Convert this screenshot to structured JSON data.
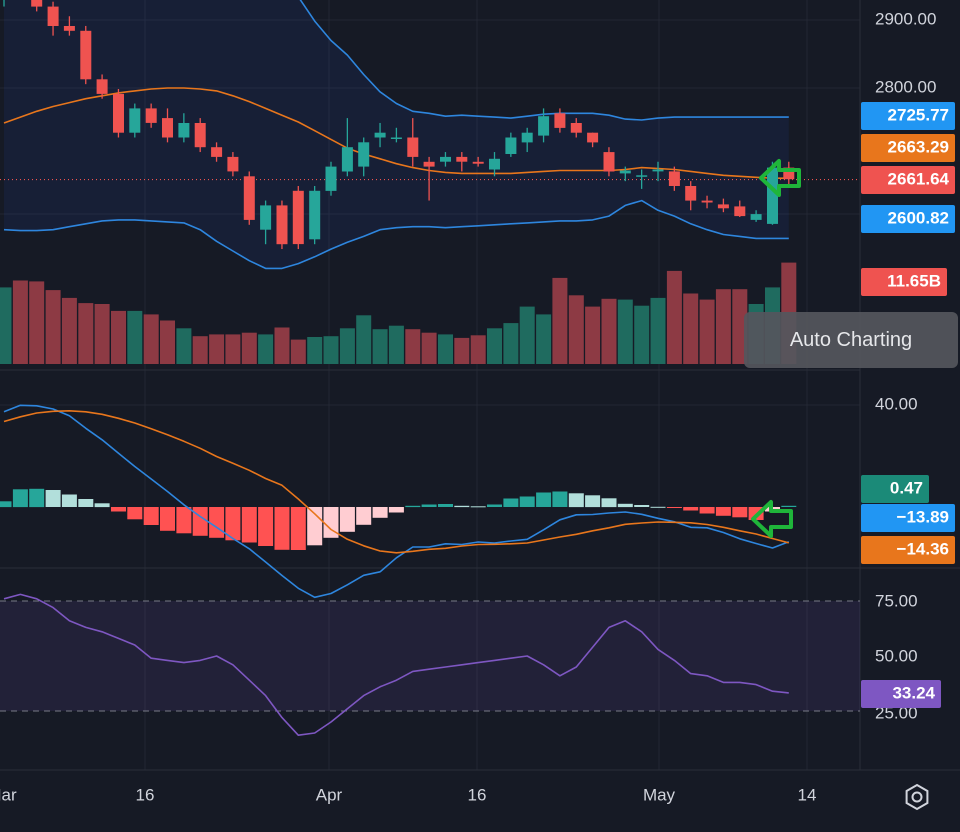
{
  "tooltip": {
    "label": "Auto Charting"
  },
  "icons": {
    "settings": "gear-icon",
    "arrow_price": "left-arrow-icon",
    "arrow_macd": "left-arrow-icon"
  },
  "colors": {
    "background": "#161a25",
    "up": "#26a69a",
    "down": "#ef5350",
    "upper_band": "#2e86de",
    "basis": "#e8761c",
    "rsi": "#7e57c2",
    "macd_line": "#2e86de",
    "signal_line": "#e8761c",
    "arrow": "#1fb53a"
  },
  "chart_data": [
    {
      "type": "candlestick",
      "panel": "price",
      "x_labels": [
        "Mar",
        "16",
        "Apr",
        "16",
        "May",
        "14"
      ],
      "y_ticks": [
        "2900.00",
        "2800.00"
      ],
      "ohlc": [
        [
          2850,
          2890,
          2840,
          2880
        ],
        [
          2880,
          2905,
          2860,
          2875
        ],
        [
          2875,
          2890,
          2835,
          2840
        ],
        [
          2840,
          2845,
          2810,
          2820
        ],
        [
          2820,
          2830,
          2810,
          2815
        ],
        [
          2815,
          2820,
          2760,
          2765
        ],
        [
          2765,
          2770,
          2745,
          2750
        ],
        [
          2750,
          2755,
          2705,
          2710
        ],
        [
          2710,
          2740,
          2705,
          2735
        ],
        [
          2735,
          2740,
          2715,
          2720
        ],
        [
          2725,
          2735,
          2700,
          2705
        ],
        [
          2705,
          2730,
          2700,
          2720
        ],
        [
          2720,
          2725,
          2690,
          2695
        ],
        [
          2695,
          2700,
          2680,
          2685
        ],
        [
          2685,
          2690,
          2665,
          2670
        ],
        [
          2665,
          2670,
          2615,
          2620
        ],
        [
          2610,
          2640,
          2595,
          2635
        ],
        [
          2635,
          2640,
          2590,
          2595
        ],
        [
          2650,
          2655,
          2590,
          2595
        ],
        [
          2600,
          2655,
          2595,
          2650
        ],
        [
          2650,
          2680,
          2645,
          2675
        ],
        [
          2670,
          2725,
          2665,
          2695
        ],
        [
          2675,
          2705,
          2665,
          2700
        ],
        [
          2705,
          2720,
          2695,
          2710
        ],
        [
          2705,
          2715,
          2700,
          2705
        ],
        [
          2705,
          2725,
          2675,
          2685
        ],
        [
          2680,
          2685,
          2640,
          2675
        ],
        [
          2680,
          2690,
          2675,
          2685
        ],
        [
          2685,
          2690,
          2670,
          2680
        ],
        [
          2680,
          2685,
          2675,
          2678
        ],
        [
          2672,
          2690,
          2665,
          2683
        ],
        [
          2688,
          2710,
          2685,
          2705
        ],
        [
          2700,
          2715,
          2690,
          2710
        ],
        [
          2707,
          2735,
          2700,
          2727
        ],
        [
          2730,
          2735,
          2710,
          2715
        ],
        [
          2720,
          2725,
          2705,
          2710
        ],
        [
          2710,
          2710,
          2695,
          2700
        ],
        [
          2690,
          2695,
          2665,
          2670
        ],
        [
          2668,
          2675,
          2660,
          2671
        ],
        [
          2666,
          2672,
          2652,
          2666
        ],
        [
          2670,
          2680,
          2660,
          2672
        ],
        [
          2670,
          2675,
          2650,
          2655
        ],
        [
          2655,
          2660,
          2630,
          2640
        ],
        [
          2640,
          2645,
          2632,
          2638
        ],
        [
          2636,
          2642,
          2628,
          2632
        ],
        [
          2634,
          2640,
          2623,
          2624
        ],
        [
          2620,
          2630,
          2618,
          2626
        ],
        [
          2616,
          2680,
          2615,
          2674
        ],
        [
          2674,
          2680,
          2656,
          2662
        ]
      ],
      "series": [
        {
          "name": "Upper",
          "last": "2725.77",
          "values": [
            2880,
            2885,
            2895,
            2897,
            2898,
            2898,
            2897,
            2896,
            2895,
            2894,
            2892,
            2893,
            2898,
            2905,
            2907,
            2902,
            2890,
            2870,
            2850,
            2825,
            2805,
            2790,
            2770,
            2752,
            2740,
            2732,
            2730,
            2727,
            2728,
            2727,
            2726,
            2725,
            2727,
            2729,
            2730,
            2730,
            2730,
            2728,
            2724,
            2723,
            2725,
            2726,
            2726,
            2726,
            2726,
            2726,
            2726,
            2726,
            2726
          ]
        },
        {
          "name": "Basis",
          "last": "2663.29",
          "values": [
            2720,
            2726,
            2732,
            2737,
            2741,
            2745,
            2748,
            2751,
            2753,
            2755,
            2756,
            2756,
            2755,
            2753,
            2748,
            2742,
            2735,
            2728,
            2721,
            2712,
            2703,
            2694,
            2688,
            2683,
            2678,
            2674,
            2671,
            2669,
            2668,
            2668,
            2668,
            2668,
            2669,
            2670,
            2671,
            2671,
            2671,
            2671,
            2672,
            2674,
            2673,
            2672,
            2670,
            2668,
            2666,
            2665,
            2664,
            2663,
            2663
          ]
        },
        {
          "name": "Lower",
          "last": "2600.82",
          "values": [
            2610,
            2609,
            2609,
            2610,
            2613,
            2616,
            2619,
            2620,
            2620,
            2619,
            2618,
            2617,
            2610,
            2598,
            2588,
            2578,
            2570,
            2570,
            2575,
            2582,
            2590,
            2597,
            2603,
            2610,
            2612,
            2613,
            2613,
            2612,
            2613,
            2614,
            2615,
            2616,
            2617,
            2618,
            2619,
            2619,
            2620,
            2624,
            2635,
            2640,
            2630,
            2624,
            2616,
            2610,
            2605,
            2603,
            2601,
            2601,
            2601
          ]
        }
      ],
      "last_price": "2661.64",
      "volume": {
        "last": "11.65B",
        "values": [
          8.8,
          9.6,
          9.5,
          8.5,
          7.6,
          7.0,
          6.9,
          6.1,
          6.1,
          5.7,
          5.0,
          4.1,
          3.2,
          3.4,
          3.4,
          3.6,
          3.4,
          4.2,
          2.8,
          3.1,
          3.2,
          4.1,
          5.6,
          4.0,
          4.4,
          4.0,
          3.6,
          3.4,
          3.0,
          3.3,
          4.1,
          4.7,
          6.6,
          5.7,
          9.9,
          7.9,
          6.6,
          7.5,
          7.4,
          6.7,
          7.6,
          10.7,
          8.1,
          7.4,
          8.6,
          8.6,
          6.9,
          8.8,
          11.65
        ]
      }
    },
    {
      "type": "macd",
      "panel": "macd",
      "y_ticks": [
        "40.00"
      ],
      "histogram": [
        2.3,
        7.1,
        7.3,
        6.8,
        5.0,
        3.2,
        1.5,
        -1.8,
        -4.9,
        -7.2,
        -9.5,
        -10.5,
        -11.5,
        -12.3,
        -13.3,
        -14.2,
        -15.6,
        -17.1,
        -17.2,
        -15.3,
        -12.3,
        -9.9,
        -7.1,
        -4.3,
        -2.2,
        0.5,
        1.0,
        1.2,
        0.5,
        0.3,
        1.0,
        3.4,
        4.2,
        5.8,
        6.2,
        5.5,
        4.7,
        3.5,
        1.3,
        0.8,
        0.1,
        -0.4,
        -1.4,
        -2.6,
        -3.5,
        -4.1,
        -5.2,
        -1.8,
        0.47
      ],
      "series": [
        {
          "name": "MACD",
          "last": "−13.89",
          "values": [
            38.1,
            40.7,
            40.5,
            39.2,
            36.5,
            31.5,
            26.9,
            21.5,
            16.2,
            11.2,
            6.2,
            0.9,
            -3.8,
            -8.1,
            -12.6,
            -16.7,
            -22.0,
            -27.4,
            -32.5,
            -36.1,
            -34.6,
            -31.1,
            -27.3,
            -25.9,
            -20.3,
            -16.0,
            -16.0,
            -14.7,
            -15.0,
            -14.0,
            -14.4,
            -13.6,
            -12.9,
            -9.1,
            -5.1,
            -3.1,
            -3.0,
            -2.4,
            -2.0,
            -2.9,
            -4.5,
            -5.9,
            -8.1,
            -8.3,
            -10.2,
            -12.7,
            -14.6,
            -16.4,
            -13.89
          ]
        },
        {
          "name": "Signal",
          "last": "−14.36",
          "values": [
            34.2,
            36.1,
            37.6,
            38.3,
            38.5,
            38.1,
            37.1,
            35.5,
            33.6,
            31.3,
            28.9,
            26.3,
            23.5,
            20.2,
            17.5,
            14.7,
            11.4,
            8.7,
            3.2,
            -2.7,
            -9.0,
            -12.9,
            -15.5,
            -17.6,
            -18.3,
            -17.7,
            -16.9,
            -16.5,
            -15.6,
            -15.0,
            -14.9,
            -14.7,
            -14.4,
            -13.2,
            -12.0,
            -10.9,
            -9.5,
            -8.3,
            -6.9,
            -6.4,
            -6.0,
            -6.1,
            -6.3,
            -7.0,
            -8.1,
            -9.5,
            -10.8,
            -12.6,
            -14.36
          ]
        }
      ]
    },
    {
      "type": "line",
      "panel": "rsi",
      "y_ticks": [
        "75.00",
        "50.00",
        "25.00"
      ],
      "bands": [
        75,
        25
      ],
      "series": [
        {
          "name": "RSI",
          "last": "33.24",
          "values": [
            76,
            78,
            76,
            72,
            66,
            63,
            61,
            58,
            55,
            49,
            48,
            47,
            48,
            50,
            46,
            39,
            32,
            22,
            14,
            15,
            20,
            26,
            32,
            36,
            39,
            43,
            44,
            45,
            46,
            47,
            48,
            49,
            50,
            46,
            41,
            45,
            54,
            63,
            66,
            61,
            53,
            48,
            42,
            41,
            38,
            38,
            37,
            34,
            33.24
          ]
        }
      ]
    }
  ]
}
